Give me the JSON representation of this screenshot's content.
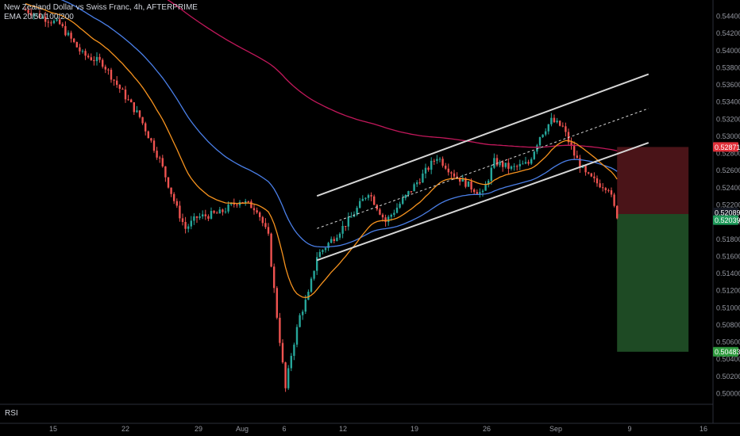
{
  "legend": {
    "title": "New Zealand Dollar vs Swiss Franc, 4h, AFTERPRIME",
    "indicator": "EMA 20/50/100/200"
  },
  "rsi_label": "RSI",
  "colors": {
    "background": "#000000",
    "bull": "#26a69a",
    "bear": "#ef5350",
    "ema20": "#f7931e",
    "ema50": "#4a7fe8",
    "ema200": "#c2185b",
    "channel": "#d6d6d6",
    "stop_zone": "#4a1418",
    "target_zone": "#1e4a24",
    "stop_badge": "#e0303a",
    "price_badge": "#1f9a5a",
    "target_badge": "#2e9a3e"
  },
  "chart_data": {
    "type": "candlestick",
    "title": "New Zealand Dollar vs Swiss Franc, 4h, AFTERPRIME",
    "x_tick_labels": [
      "15",
      "22",
      "29",
      "Aug",
      "6",
      "12",
      "19",
      "26",
      "Sep",
      "9",
      "16"
    ],
    "y_tick_labels": [
      "0.54400",
      "0.54200",
      "0.54000",
      "0.53800",
      "0.53600",
      "0.53400",
      "0.53200",
      "0.53000",
      "0.52800",
      "0.52600",
      "0.52400",
      "0.52200",
      "0.52000",
      "0.51800",
      "0.51600",
      "0.51400",
      "0.51200",
      "0.51000",
      "0.50800",
      "0.50600",
      "0.50400",
      "0.50200",
      "0.50000"
    ],
    "ylim": [
      0.499,
      0.545
    ],
    "price_anchors": [
      {
        "bar": 0,
        "price": 0.5447
      },
      {
        "bar": 12,
        "price": 0.543
      },
      {
        "bar": 20,
        "price": 0.5395
      },
      {
        "bar": 27,
        "price": 0.5385
      },
      {
        "bar": 32,
        "price": 0.536
      },
      {
        "bar": 40,
        "price": 0.5322
      },
      {
        "bar": 47,
        "price": 0.5272
      },
      {
        "bar": 53,
        "price": 0.5215
      },
      {
        "bar": 56,
        "price": 0.5192
      },
      {
        "bar": 60,
        "price": 0.5205
      },
      {
        "bar": 68,
        "price": 0.521
      },
      {
        "bar": 75,
        "price": 0.5225
      },
      {
        "bar": 81,
        "price": 0.5215
      },
      {
        "bar": 85,
        "price": 0.5182
      },
      {
        "bar": 88,
        "price": 0.509
      },
      {
        "bar": 91,
        "price": 0.5005
      },
      {
        "bar": 93,
        "price": 0.5045
      },
      {
        "bar": 96,
        "price": 0.509
      },
      {
        "bar": 99,
        "price": 0.5115
      },
      {
        "bar": 102,
        "price": 0.516
      },
      {
        "bar": 108,
        "price": 0.5182
      },
      {
        "bar": 114,
        "price": 0.5205
      },
      {
        "bar": 120,
        "price": 0.5235
      },
      {
        "bar": 126,
        "price": 0.52
      },
      {
        "bar": 132,
        "price": 0.5225
      },
      {
        "bar": 138,
        "price": 0.525
      },
      {
        "bar": 144,
        "price": 0.5276
      },
      {
        "bar": 150,
        "price": 0.5255
      },
      {
        "bar": 156,
        "price": 0.524
      },
      {
        "bar": 160,
        "price": 0.5232
      },
      {
        "bar": 164,
        "price": 0.527
      },
      {
        "bar": 170,
        "price": 0.5262
      },
      {
        "bar": 176,
        "price": 0.5268
      },
      {
        "bar": 180,
        "price": 0.53
      },
      {
        "bar": 184,
        "price": 0.5318
      },
      {
        "bar": 188,
        "price": 0.531
      },
      {
        "bar": 192,
        "price": 0.5278
      },
      {
        "bar": 196,
        "price": 0.5255
      },
      {
        "bar": 200,
        "price": 0.5245
      },
      {
        "bar": 204,
        "price": 0.524
      },
      {
        "bar": 207,
        "price": 0.5204
      }
    ],
    "channel": {
      "upper": [
        {
          "bar": 102,
          "price": 0.523
        },
        {
          "bar": 218,
          "price": 0.5372
        }
      ],
      "mid": [
        {
          "bar": 102,
          "price": 0.5192
        },
        {
          "bar": 218,
          "price": 0.5332
        }
      ],
      "lower": [
        {
          "bar": 102,
          "price": 0.5155
        },
        {
          "bar": 218,
          "price": 0.5292
        }
      ]
    },
    "position": {
      "from_bar": 207,
      "to_bar": 232,
      "stop": 0.52871,
      "entry": 0.52089,
      "target": 0.50483,
      "current": 0.52039
    },
    "price_labels": {
      "stop": "0.52871",
      "entry": "0.52089",
      "current": "0.52039",
      "target": "0.50483"
    }
  }
}
